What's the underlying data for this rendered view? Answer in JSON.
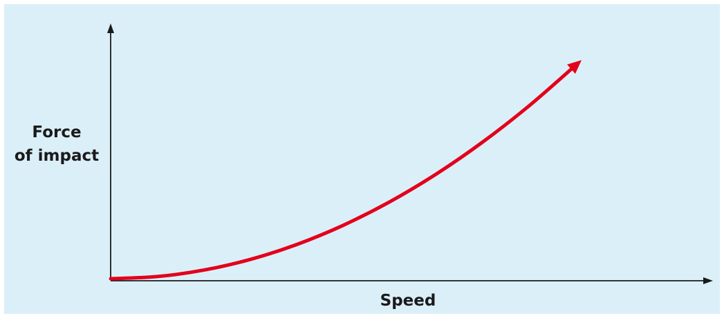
{
  "chart_data": {
    "type": "line",
    "title": "",
    "xlabel": "Speed",
    "ylabel": [
      "Force",
      "of impact"
    ],
    "xlim": [
      0,
      1
    ],
    "ylim": [
      0,
      1
    ],
    "grid": false,
    "legend": "none",
    "series": [
      {
        "color": "#e3001b",
        "x": [
          0,
          0.1,
          0.2,
          0.3,
          0.4,
          0.5,
          0.6,
          0.7,
          0.8,
          0.9,
          1.0
        ],
        "y": [
          0,
          0.01,
          0.04,
          0.09,
          0.16,
          0.25,
          0.36,
          0.49,
          0.64,
          0.81,
          1.0
        ]
      }
    ]
  },
  "colors": {
    "background": "#dbeff8",
    "axis": "#1a1a1a",
    "curve": "#e3001b"
  }
}
